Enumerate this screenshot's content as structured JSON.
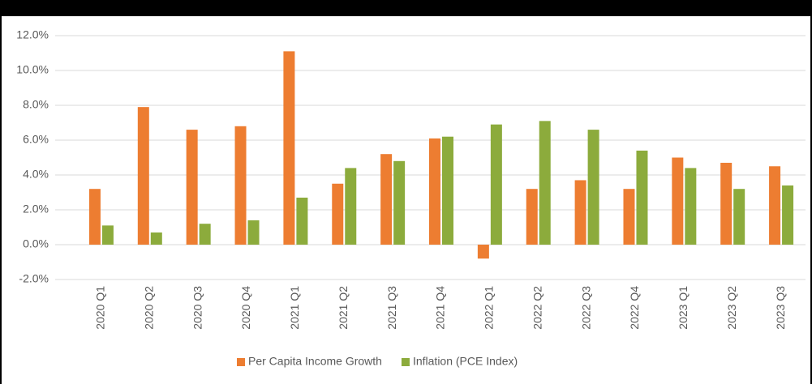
{
  "chart_data": {
    "type": "bar",
    "categories": [
      "2020 Q1",
      "2020 Q2",
      "2020 Q3",
      "2020 Q4",
      "2021 Q1",
      "2021 Q2",
      "2021 Q3",
      "2021 Q4",
      "2022 Q1",
      "2022 Q2",
      "2022 Q3",
      "2022 Q4",
      "2023 Q1",
      "2023 Q2",
      "2023 Q3"
    ],
    "series": [
      {
        "name": "Per Capita Income Growth",
        "color": "#ed7d31",
        "values": [
          3.2,
          7.9,
          6.6,
          6.8,
          11.1,
          3.5,
          5.2,
          6.1,
          -0.8,
          3.2,
          3.7,
          3.2,
          5.0,
          4.7,
          4.5
        ]
      },
      {
        "name": "Inflation (PCE Index)",
        "color": "#8cab3c",
        "values": [
          1.1,
          0.7,
          1.2,
          1.4,
          2.7,
          4.4,
          4.8,
          6.2,
          6.9,
          7.1,
          6.6,
          5.4,
          4.4,
          3.2,
          3.4
        ]
      }
    ],
    "ylim": [
      -2,
      12
    ],
    "yticks": [
      {
        "value": -2,
        "label": "-2.0%"
      },
      {
        "value": 0,
        "label": "0.0%"
      },
      {
        "value": 2,
        "label": "2.0%"
      },
      {
        "value": 4,
        "label": "4.0%"
      },
      {
        "value": 6,
        "label": "6.0%"
      },
      {
        "value": 8,
        "label": "8.0%"
      },
      {
        "value": 10,
        "label": "10.0%"
      },
      {
        "value": 12,
        "label": "12.0%"
      }
    ],
    "grid": true,
    "legend": "bottom"
  }
}
